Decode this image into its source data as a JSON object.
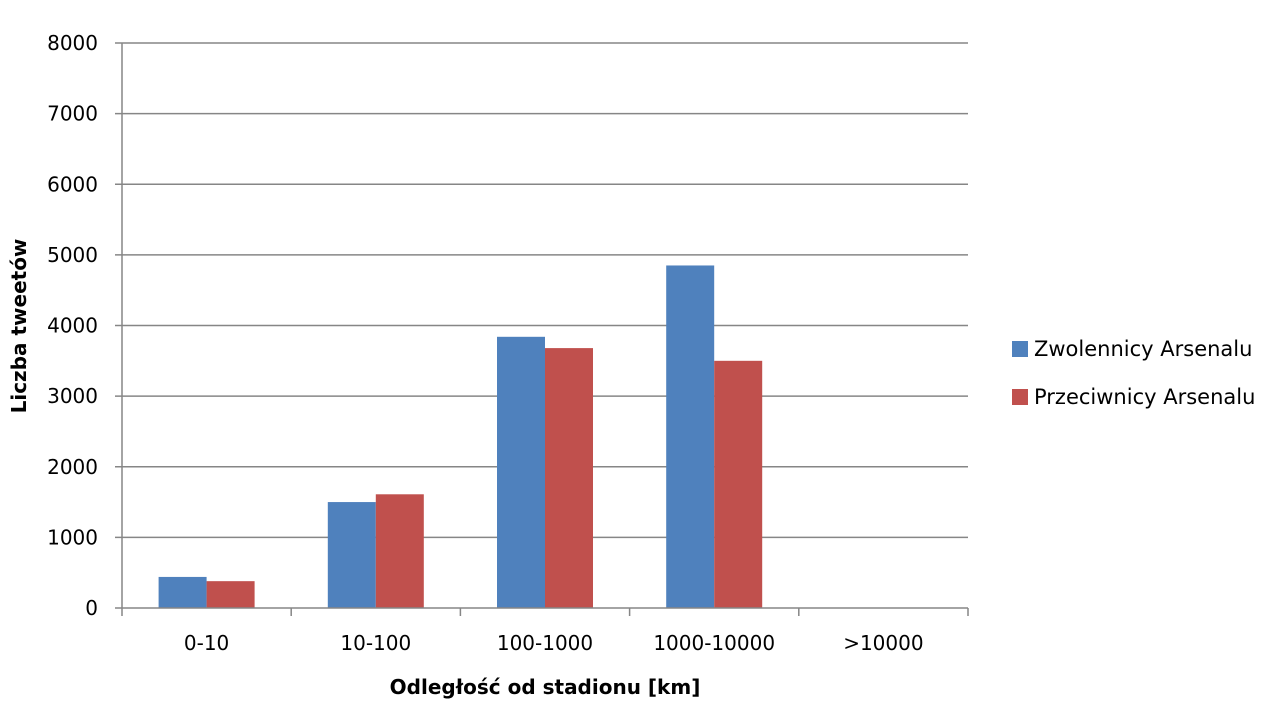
{
  "chart_data": {
    "type": "bar",
    "title": "",
    "xlabel": "Odległość od stadionu [km]",
    "ylabel": "Liczba tweetów",
    "categories": [
      "0-10",
      "10-100",
      "100-1000",
      "1000-10000",
      ">10000"
    ],
    "series": [
      {
        "name": "Zwolennicy Arsenalu",
        "color": "#4F81BD",
        "values": [
          440,
          1500,
          3840,
          4850,
          0
        ]
      },
      {
        "name": "Przeciwnicy Arsenalu",
        "color": "#C0504D",
        "values": [
          380,
          1610,
          3680,
          3500,
          0
        ]
      }
    ],
    "ylim": [
      0,
      8000
    ],
    "yticks": [
      "0",
      "1000",
      "2000",
      "3000",
      "4000",
      "5000",
      "6000",
      "7000",
      "8000"
    ],
    "grid": true,
    "legend_position": "right"
  }
}
